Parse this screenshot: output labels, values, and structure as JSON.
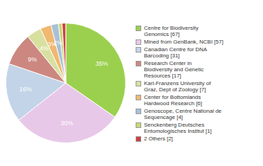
{
  "chart_data": {
    "type": "pie",
    "categories": [
      "Centre for Biodiversity\nGenomics [67]",
      "Mined from GenBank, NCBI [57]",
      "Canadian Centre for DNA\nBarcoding [31]",
      "Research Center in\nBiodiversity and Genetic\nResources [17]",
      "Karl-Franzens University of\nGraz, Dept of Zoology [7]",
      "Center for Bottomlands\nHardwood Research [6]",
      "Genoscope, Centre National de\nSequencage [4]",
      "Senckenberg Deutsches\nEntomologisches Institut [1]",
      "2 Others [2]"
    ],
    "values": [
      35,
      30,
      16,
      9,
      4,
      3,
      2,
      1,
      1
    ],
    "value_labels": [
      "35%",
      "30%",
      "16%",
      "9%",
      "4%",
      "3%",
      "2%",
      null,
      null
    ],
    "colors": [
      "#9bd04e",
      "#e8c8e8",
      "#c4d4e8",
      "#cc8880",
      "#d8e0a0",
      "#f0b870",
      "#a8c0d8",
      "#c8d870",
      "#cc4040"
    ],
    "data_labels": true,
    "legend": "right"
  }
}
